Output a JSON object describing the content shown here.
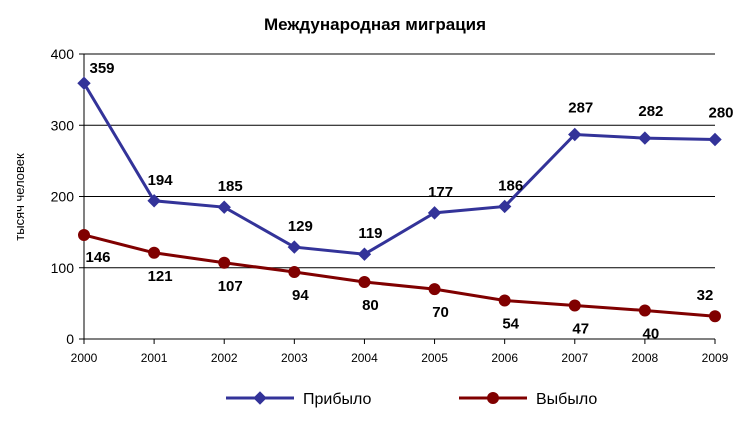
{
  "chart_data": {
    "type": "line",
    "title": "Международная миграция",
    "ylabel": "тысяч человек",
    "xlabel": "",
    "x": [
      "2000",
      "2001",
      "2002",
      "2003",
      "2004",
      "2005",
      "2006",
      "2007",
      "2008",
      "2009"
    ],
    "ylim": [
      0,
      400
    ],
    "yticks": [
      0,
      100,
      200,
      300,
      400
    ],
    "grid": true,
    "legend": "bottom",
    "series": [
      {
        "name": "Прибыло",
        "color": "#333399",
        "marker": "diamond",
        "values": [
          359,
          194,
          185,
          129,
          119,
          177,
          186,
          287,
          282,
          280
        ]
      },
      {
        "name": "Выбыло",
        "color": "#800000",
        "marker": "circle",
        "values": [
          146,
          121,
          107,
          94,
          80,
          70,
          54,
          47,
          40,
          32
        ]
      }
    ]
  }
}
